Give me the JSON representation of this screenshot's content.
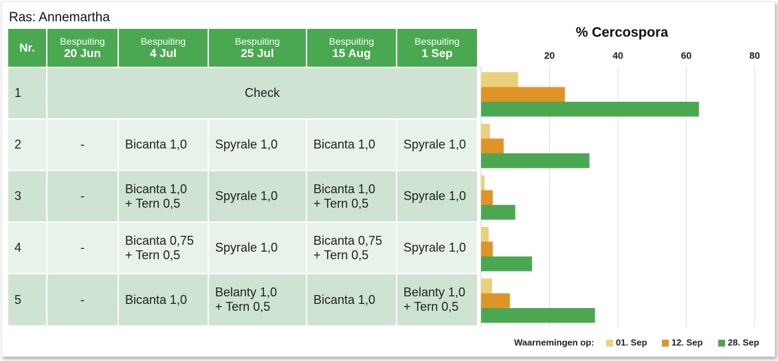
{
  "title": "Ras: Annemartha",
  "table": {
    "header": [
      [
        "Nr."
      ],
      [
        "Bespuiting",
        "20 Jun"
      ],
      [
        "Bespuiting",
        "4 Jul"
      ],
      [
        "Bespuiting",
        "25 Jul"
      ],
      [
        "Bespuiting",
        "15 Aug"
      ],
      [
        "Bespuiting",
        "1 Sep"
      ]
    ],
    "rows": [
      [
        [
          "1"
        ],
        [
          "Check"
        ]
      ],
      [
        [
          "2"
        ],
        [
          "-"
        ],
        [
          "Bicanta 1,0"
        ],
        [
          "Spyrale 1,0"
        ],
        [
          "Bicanta 1,0"
        ],
        [
          "Spyrale 1,0"
        ]
      ],
      [
        [
          "3"
        ],
        [
          "-"
        ],
        [
          "Bicanta 1,0",
          "+ Tern 0,5"
        ],
        [
          "Spyrale 1,0"
        ],
        [
          "Bicanta 1,0",
          "+ Tern 0,5"
        ],
        [
          "Spyrale 1,0"
        ]
      ],
      [
        [
          "4"
        ],
        [
          "-"
        ],
        [
          "Bicanta 0,75",
          "+ Tern 0,5"
        ],
        [
          "Spyrale 1,0"
        ],
        [
          "Bicanta 0,75",
          "+ Tern 0,5"
        ],
        [
          "Spyrale 1,0"
        ]
      ],
      [
        [
          "5"
        ],
        [
          "-"
        ],
        [
          "Bicanta 1,0"
        ],
        [
          "Belanty 1,0",
          "+ Tern 0,5"
        ],
        [
          "Bicanta 1,0"
        ],
        [
          "Belanty 1,0",
          "+ Tern 0,5"
        ]
      ]
    ]
  },
  "chart_data": {
    "type": "bar",
    "orientation": "horizontal",
    "title": "% Cercospora",
    "categories": [
      null,
      null,
      null,
      null,
      null
    ],
    "series": [
      {
        "name": "01. Sep",
        "color": "#ebd07c",
        "values": [
          10.8,
          2.6,
          1,
          2.2,
          3.2
        ]
      },
      {
        "name": "12. Sep",
        "color": "#df9428",
        "values": [
          24.5,
          6.6,
          3.4,
          3.4,
          8.4
        ]
      },
      {
        "name": "28. Sep",
        "color": "#4aa851",
        "values": [
          63.7,
          31.7,
          10,
          14.9,
          33.3
        ]
      }
    ],
    "xlim": [
      0,
      80
    ],
    "xticks": [
      20,
      40,
      60,
      80
    ],
    "grid": true,
    "legend_title": "Waarnemingen op:",
    "legend": "bottom-right"
  }
}
